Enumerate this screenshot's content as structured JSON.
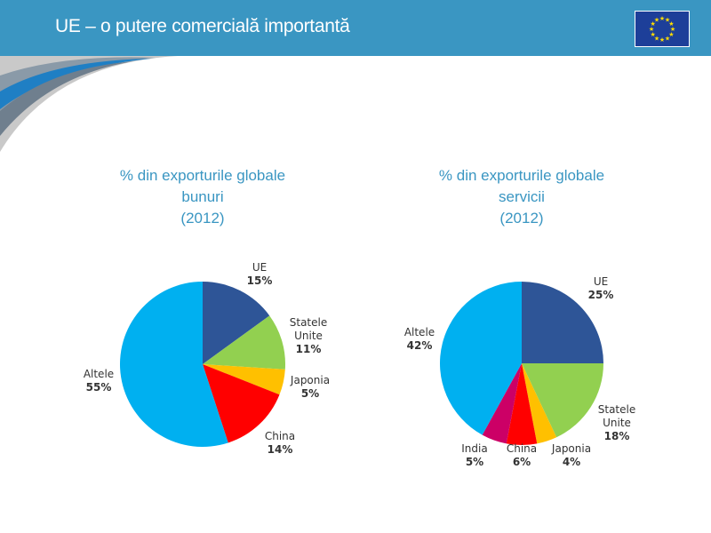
{
  "header": {
    "title": "UE – o putere comercială importantă",
    "flag": "eu-flag-icon"
  },
  "colors": {
    "header": "#3a96c2",
    "title_text": "#3a96c2"
  },
  "chart_data": [
    {
      "type": "pie",
      "title_lines": [
        "% din exporturile globale",
        "bunuri",
        "(2012)"
      ],
      "slices": [
        {
          "label_lines": [
            "UE"
          ],
          "value": 15,
          "value_label": "15%",
          "color": "#2e5597"
        },
        {
          "label_lines": [
            "Statele",
            "Unite"
          ],
          "value": 11,
          "value_label": "11%",
          "color": "#92d050"
        },
        {
          "label_lines": [
            "Japonia"
          ],
          "value": 5,
          "value_label": "5%",
          "color": "#ffc000"
        },
        {
          "label_lines": [
            "China"
          ],
          "value": 14,
          "value_label": "14%",
          "color": "#ff0000"
        },
        {
          "label_lines": [
            "Altele"
          ],
          "value": 55,
          "value_label": "55%",
          "color": "#00b0f0"
        }
      ]
    },
    {
      "type": "pie",
      "title_lines": [
        "% din exporturile globale",
        "servicii",
        "(2012)"
      ],
      "slices": [
        {
          "label_lines": [
            "UE"
          ],
          "value": 25,
          "value_label": "25%",
          "color": "#2e5597"
        },
        {
          "label_lines": [
            "Statele",
            "Unite"
          ],
          "value": 18,
          "value_label": "18%",
          "color": "#92d050"
        },
        {
          "label_lines": [
            "Japonia"
          ],
          "value": 4,
          "value_label": "4%",
          "color": "#ffc000"
        },
        {
          "label_lines": [
            "China"
          ],
          "value": 6,
          "value_label": "6%",
          "color": "#ff0000"
        },
        {
          "label_lines": [
            "India"
          ],
          "value": 5,
          "value_label": "5%",
          "color": "#cc0066"
        },
        {
          "label_lines": [
            "Altele"
          ],
          "value": 42,
          "value_label": "42%",
          "color": "#00b0f0"
        }
      ]
    }
  ]
}
